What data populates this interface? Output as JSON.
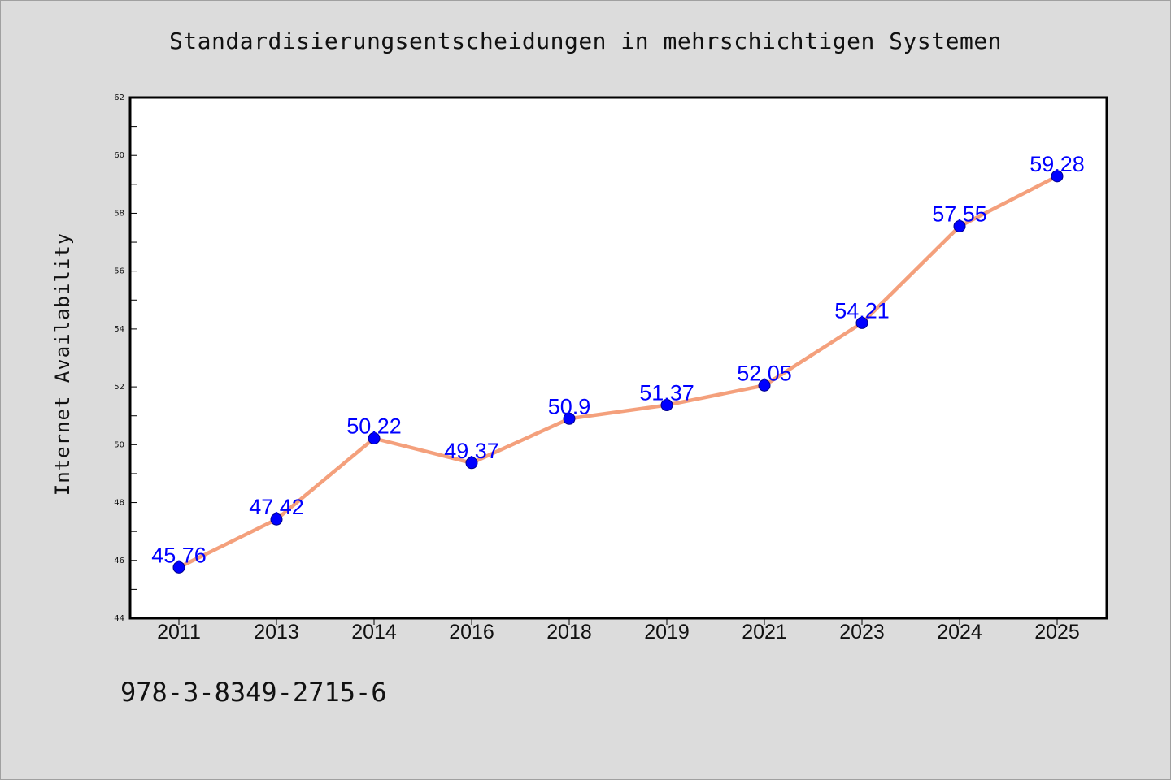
{
  "chart_data": {
    "type": "line",
    "title": "Standardisierungsentscheidungen in mehrschichtigen Systemen",
    "xlabel": "",
    "ylabel": "Internet Availability",
    "categories": [
      "2011",
      "2013",
      "2014",
      "2016",
      "2018",
      "2019",
      "2021",
      "2023",
      "2024",
      "2025"
    ],
    "series": [
      {
        "values": [
          45.76,
          47.42,
          50.22,
          49.37,
          50.9,
          51.37,
          52.05,
          54.21,
          57.55,
          59.28
        ],
        "data_labels": [
          "45.76",
          "47.42",
          "50.22",
          "49.37",
          "50.9",
          "51.37",
          "52.05",
          "54.21",
          "57.55",
          "59.28"
        ],
        "line_color": "#f4a07c",
        "marker_color": "#0000ff"
      }
    ],
    "ylim": [
      44,
      62
    ],
    "y_ticks": [
      "44",
      "46",
      "48",
      "50",
      "52",
      "54",
      "56",
      "58",
      "60",
      "62"
    ],
    "grid": false,
    "legend": "none"
  },
  "footer": {
    "isbn": "978-3-8349-2715-6"
  },
  "colors": {
    "background": "#dcdcdc",
    "plot_background": "#ffffff",
    "axes": "#000000"
  }
}
